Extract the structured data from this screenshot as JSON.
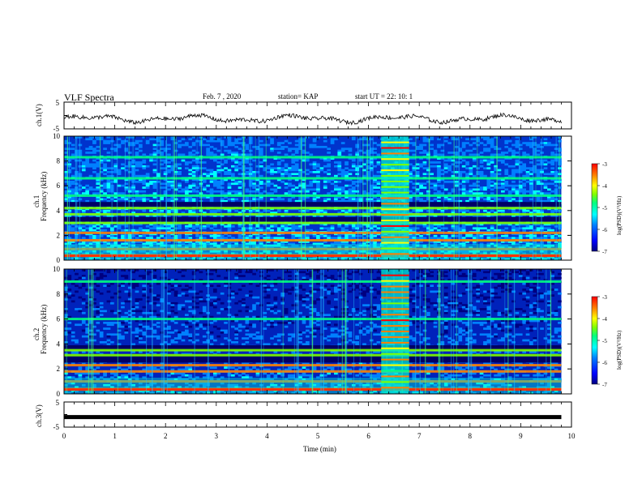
{
  "header": {
    "title": "VLF Spectra",
    "date": "Feb. 7  , 2020",
    "station": "station= KAP",
    "start": "start  UT  =   22: 10: 1"
  },
  "chart_data": [
    {
      "type": "line",
      "name": "ch1-voltage",
      "ylabel": "ch.1(V)",
      "ylim": [
        -5,
        5
      ],
      "yticks": [
        "5",
        "-5"
      ],
      "xlim": [
        0,
        9.8
      ],
      "description_units": "V",
      "grid": false
    },
    {
      "type": "heatmap",
      "name": "ch1-spectrogram",
      "ylabel_line1": "ch.1",
      "ylabel_line2": "Frequency (kHz)",
      "ylim": [
        0,
        10
      ],
      "yticks": [
        "0",
        "2",
        "4",
        "6",
        "8",
        "10"
      ],
      "xlim": [
        0,
        9.8
      ],
      "bright_bands_khz": [
        0.4,
        0.9,
        1.6,
        2.2,
        3.0,
        3.7,
        4.2,
        5.2,
        6.6,
        8.3
      ],
      "dark_bands_khz": [
        3.3,
        4.5
      ],
      "burst_interval_min": [
        6.25,
        6.8
      ],
      "colorbar": {
        "label": "log(PSD)(V²/Hz)",
        "range": [
          -7,
          -3
        ],
        "ticks": [
          "-3",
          "-4",
          "-5",
          "-6",
          "-7"
        ]
      }
    },
    {
      "type": "heatmap",
      "name": "ch2-spectrogram",
      "ylabel_line1": "ch.2",
      "ylabel_line2": "Frequency (kHz)",
      "ylim": [
        0,
        10
      ],
      "yticks": [
        "0",
        "2",
        "4",
        "6",
        "8",
        "10"
      ],
      "xlim": [
        0,
        9.8
      ],
      "bright_bands_khz": [
        0.4,
        1.0,
        1.8,
        2.3,
        3.1,
        3.5,
        6.0,
        9.0
      ],
      "dark_bands_khz": [
        2.7,
        3.0,
        3.7
      ],
      "burst_interval_min": [
        6.25,
        6.8
      ],
      "colorbar": {
        "label": "log(PSD)(V²/Hz)",
        "range": [
          -7,
          -3
        ],
        "ticks": [
          "-3",
          "-4",
          "-5",
          "-6",
          "-7"
        ]
      }
    },
    {
      "type": "line",
      "name": "ch3-voltage",
      "ylabel": "ch.3(V)",
      "ylim": [
        -5,
        5
      ],
      "yticks": [
        "5",
        "-5"
      ],
      "xlim": [
        0,
        9.8
      ],
      "constant_value_v": -1,
      "xlabel": "Time  (min)",
      "xticks": [
        "0",
        "1",
        "2",
        "3",
        "4",
        "5",
        "6",
        "7",
        "8",
        "9",
        "10"
      ],
      "xrange": [
        0,
        10
      ]
    }
  ],
  "colors": {
    "colormap": [
      "#000080",
      "#0000ff",
      "#0080ff",
      "#00ffff",
      "#00ff80",
      "#80ff00",
      "#ffff00",
      "#ff8000",
      "#ff0000"
    ],
    "trace": "#000000"
  }
}
